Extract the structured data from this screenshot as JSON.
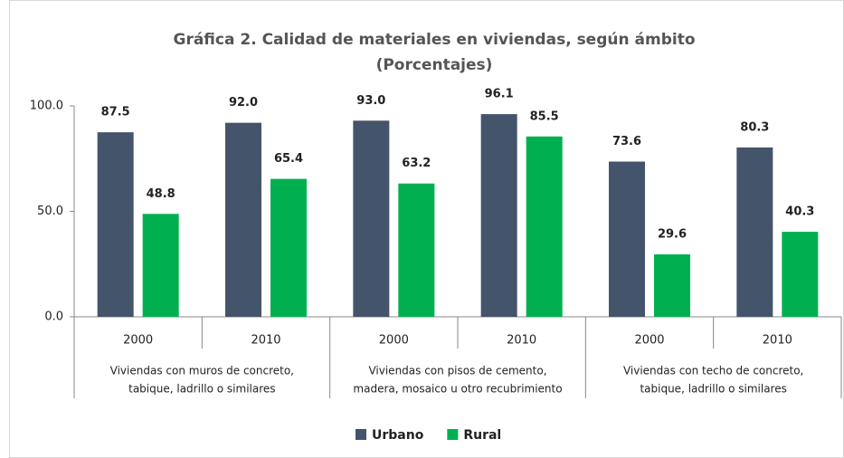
{
  "chart_data": {
    "type": "bar",
    "title": "Gráfica 2. Calidad de materiales en viviendas, según ámbito",
    "subtitle": "(Porcentajes)",
    "categories": [
      "2000",
      "2010",
      "2000",
      "2010",
      "2000",
      "2010"
    ],
    "groups": [
      [
        "Viviendas con muros de concreto,",
        "tabique, ladrillo o similares"
      ],
      [
        "Viviendas con pisos de cemento,",
        "madera, mosaico u otro recubrimiento"
      ],
      [
        "Viviendas con techo de concreto,",
        "tabique, ladrillo o similares"
      ]
    ],
    "series": [
      {
        "name": "Urbano",
        "color": "#44546a",
        "values": [
          87.5,
          92.0,
          93.0,
          96.1,
          73.6,
          80.3
        ],
        "value_labels": [
          "87.5",
          "92.0",
          "93.0",
          "96.1",
          "73.6",
          "80.3"
        ]
      },
      {
        "name": "Rural",
        "color": "#00b050",
        "values": [
          48.8,
          65.4,
          63.2,
          85.5,
          29.6,
          40.3
        ],
        "value_labels": [
          "48.8",
          "65.4",
          "63.2",
          "85.5",
          "29.6",
          "40.3"
        ]
      }
    ],
    "ylim": [
      0,
      100
    ],
    "yticks": [
      {
        "value": 0,
        "label": "0.0"
      },
      {
        "value": 50,
        "label": "50.0"
      },
      {
        "value": 100,
        "label": "100.0"
      }
    ],
    "legend": "bottom"
  }
}
